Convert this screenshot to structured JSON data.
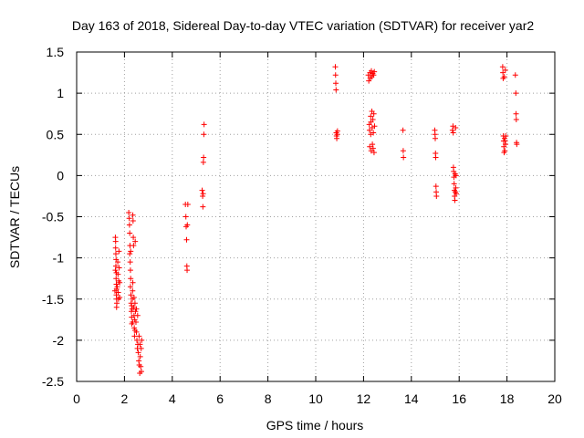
{
  "chart_data": {
    "type": "scatter",
    "title": "Day 163 of 2018, Sidereal Day-to-day VTEC variation (SDTVAR) for receiver yar2",
    "xlabel": "GPS time / hours",
    "ylabel": "SDTVAR / TECUs",
    "xlim": [
      0,
      20
    ],
    "ylim": [
      -2.5,
      1.5
    ],
    "x_ticks": [
      0,
      2,
      4,
      6,
      8,
      10,
      12,
      14,
      16,
      18,
      20
    ],
    "x_tick_labels": [
      "0",
      "2",
      "4",
      "6",
      "8",
      "10",
      "12",
      "14",
      "16",
      "18",
      "20"
    ],
    "y_ticks": [
      -2.5,
      -2,
      -1.5,
      -1,
      -0.5,
      0,
      0.5,
      1,
      1.5
    ],
    "y_tick_labels": [
      "-2.5",
      "-2",
      "-1.5",
      "-1",
      "-0.5",
      "0",
      "0.5",
      "1",
      "1.5"
    ],
    "grid": true,
    "marker": "+",
    "color": "#ff0000",
    "series": [
      {
        "name": "SDTVAR",
        "points": [
          [
            1.62,
            -0.75
          ],
          [
            1.63,
            -0.8
          ],
          [
            1.63,
            -0.88
          ],
          [
            1.64,
            -0.95
          ],
          [
            1.65,
            -1.02
          ],
          [
            1.64,
            -1.1
          ],
          [
            1.66,
            -1.18
          ],
          [
            1.65,
            -1.25
          ],
          [
            1.66,
            -1.32
          ],
          [
            1.67,
            -1.38
          ],
          [
            1.66,
            -1.45
          ],
          [
            1.67,
            -1.5
          ],
          [
            1.68,
            -1.55
          ],
          [
            1.67,
            -1.6
          ],
          [
            1.7,
            -1.35
          ],
          [
            1.72,
            -1.05
          ],
          [
            1.73,
            -1.2
          ],
          [
            1.74,
            -1.42
          ],
          [
            1.75,
            -1.5
          ],
          [
            1.76,
            -1.28
          ],
          [
            1.77,
            -0.92
          ],
          [
            1.78,
            -1.12
          ],
          [
            1.8,
            -1.3
          ],
          [
            1.8,
            -1.48
          ],
          [
            1.6,
            -1.4
          ],
          [
            1.62,
            -1.15
          ],
          [
            2.18,
            -0.45
          ],
          [
            2.2,
            -0.52
          ],
          [
            2.21,
            -0.6
          ],
          [
            2.22,
            -0.7
          ],
          [
            2.23,
            -0.85
          ],
          [
            2.22,
            -0.95
          ],
          [
            2.24,
            -1.05
          ],
          [
            2.25,
            -1.15
          ],
          [
            2.26,
            -1.25
          ],
          [
            2.25,
            -1.35
          ],
          [
            2.27,
            -1.45
          ],
          [
            2.28,
            -1.55
          ],
          [
            2.29,
            -1.65
          ],
          [
            2.3,
            -1.72
          ],
          [
            2.31,
            -1.8
          ],
          [
            2.32,
            -1.62
          ],
          [
            2.33,
            -1.5
          ],
          [
            2.34,
            -1.4
          ],
          [
            2.35,
            -1.3
          ],
          [
            2.35,
            -0.48
          ],
          [
            2.36,
            -0.55
          ],
          [
            2.37,
            -0.75
          ],
          [
            2.38,
            -0.85
          ],
          [
            2.39,
            -1.6
          ],
          [
            2.4,
            -1.7
          ],
          [
            2.41,
            -1.85
          ],
          [
            2.42,
            -1.95
          ],
          [
            2.43,
            -1.75
          ],
          [
            2.44,
            -1.55
          ],
          [
            2.45,
            -0.8
          ],
          [
            2.46,
            -1.65
          ],
          [
            2.48,
            -1.78
          ],
          [
            2.5,
            -1.9
          ],
          [
            2.52,
            -2.0
          ],
          [
            2.54,
            -2.1
          ],
          [
            2.55,
            -1.7
          ],
          [
            2.56,
            -2.05
          ],
          [
            2.58,
            -2.15
          ],
          [
            2.6,
            -2.25
          ],
          [
            2.61,
            -1.95
          ],
          [
            2.62,
            -2.3
          ],
          [
            2.64,
            -2.4
          ],
          [
            2.65,
            -2.05
          ],
          [
            2.66,
            -2.2
          ],
          [
            2.68,
            -2.32
          ],
          [
            2.7,
            -2.1
          ],
          [
            2.71,
            -2.38
          ],
          [
            2.72,
            -2.0
          ],
          [
            2.26,
            -0.92
          ],
          [
            2.3,
            -1.58
          ],
          [
            2.34,
            -1.78
          ],
          [
            2.4,
            -1.48
          ],
          [
            2.44,
            -1.88
          ],
          [
            2.5,
            -1.62
          ],
          [
            4.55,
            -0.35
          ],
          [
            4.57,
            -0.5
          ],
          [
            4.58,
            -0.62
          ],
          [
            4.6,
            -0.78
          ],
          [
            4.61,
            -1.1
          ],
          [
            4.62,
            -1.15
          ],
          [
            4.63,
            -0.6
          ],
          [
            4.65,
            -0.35
          ],
          [
            5.25,
            -0.18
          ],
          [
            5.27,
            -0.25
          ],
          [
            5.28,
            -0.38
          ],
          [
            5.3,
            0.16
          ],
          [
            5.31,
            0.22
          ],
          [
            5.32,
            0.5
          ],
          [
            5.33,
            0.62
          ],
          [
            5.29,
            -0.22
          ],
          [
            10.82,
            1.32
          ],
          [
            10.83,
            1.22
          ],
          [
            10.84,
            1.12
          ],
          [
            10.85,
            1.04
          ],
          [
            10.86,
            0.52
          ],
          [
            10.87,
            0.48
          ],
          [
            10.88,
            0.45
          ],
          [
            10.9,
            0.5
          ],
          [
            10.91,
            0.54
          ],
          [
            12.2,
            1.22
          ],
          [
            12.22,
            1.15
          ],
          [
            12.24,
            0.62
          ],
          [
            12.25,
            0.55
          ],
          [
            12.26,
            0.35
          ],
          [
            12.27,
            1.25
          ],
          [
            12.28,
            1.18
          ],
          [
            12.3,
            0.72
          ],
          [
            12.31,
            0.65
          ],
          [
            12.32,
            0.3
          ],
          [
            12.33,
            1.27
          ],
          [
            12.34,
            1.2
          ],
          [
            12.35,
            0.78
          ],
          [
            12.36,
            0.58
          ],
          [
            12.37,
            0.38
          ],
          [
            12.38,
            1.24
          ],
          [
            12.39,
            0.68
          ],
          [
            12.4,
            0.33
          ],
          [
            12.41,
            0.52
          ],
          [
            12.42,
            1.22
          ],
          [
            12.43,
            0.75
          ],
          [
            12.44,
            0.28
          ],
          [
            12.45,
            1.26
          ],
          [
            12.46,
            0.6
          ],
          [
            12.3,
            0.5
          ],
          [
            13.65,
            0.55
          ],
          [
            13.66,
            0.3
          ],
          [
            13.67,
            0.22
          ],
          [
            14.98,
            0.55
          ],
          [
            14.99,
            0.5
          ],
          [
            15.0,
            0.45
          ],
          [
            15.01,
            0.27
          ],
          [
            15.02,
            0.22
          ],
          [
            15.03,
            -0.13
          ],
          [
            15.04,
            -0.2
          ],
          [
            15.05,
            -0.25
          ],
          [
            15.72,
            0.55
          ],
          [
            15.74,
            0.6
          ],
          [
            15.75,
            0.52
          ],
          [
            15.76,
            0.1
          ],
          [
            15.77,
            0.05
          ],
          [
            15.78,
            -0.02
          ],
          [
            15.79,
            -0.1
          ],
          [
            15.8,
            -0.18
          ],
          [
            15.81,
            -0.25
          ],
          [
            15.82,
            -0.3
          ],
          [
            15.83,
            0.02
          ],
          [
            15.84,
            -0.2
          ],
          [
            15.85,
            0.58
          ],
          [
            15.86,
            -0.15
          ],
          [
            15.87,
            0.0
          ],
          [
            15.88,
            -0.22
          ],
          [
            17.82,
            1.32
          ],
          [
            17.83,
            1.25
          ],
          [
            17.84,
            1.18
          ],
          [
            17.85,
            0.48
          ],
          [
            17.86,
            0.42
          ],
          [
            17.87,
            0.35
          ],
          [
            17.88,
            0.28
          ],
          [
            17.89,
            1.2
          ],
          [
            17.9,
            0.45
          ],
          [
            17.91,
            0.3
          ],
          [
            17.92,
            0.42
          ],
          [
            17.93,
            1.28
          ],
          [
            17.94,
            0.38
          ],
          [
            17.95,
            0.48
          ],
          [
            18.35,
            1.22
          ],
          [
            18.37,
            1.0
          ],
          [
            18.38,
            0.75
          ],
          [
            18.39,
            0.68
          ],
          [
            18.4,
            0.4
          ],
          [
            18.41,
            0.38
          ]
        ]
      }
    ]
  }
}
